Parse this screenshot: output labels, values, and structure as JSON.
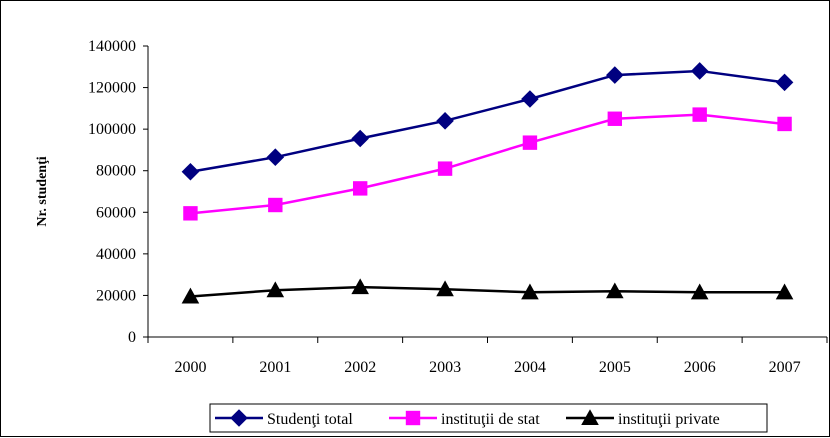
{
  "chart_data": {
    "type": "line",
    "title": "",
    "xlabel": "",
    "ylabel": "Nr. studenţi",
    "categories": [
      "2000",
      "2001",
      "2002",
      "2003",
      "2004",
      "2005",
      "2006",
      "2007"
    ],
    "ylim": [
      0,
      140000
    ],
    "yticks": [
      "0",
      "20000",
      "40000",
      "60000",
      "80000",
      "100000",
      "120000",
      "140000"
    ],
    "grid": false,
    "legend_position": "bottom",
    "series": [
      {
        "name": "Studenţi total",
        "color": "#000080",
        "marker": "diamond",
        "values": [
          79500,
          86500,
          95500,
          104000,
          114500,
          126000,
          128000,
          122500
        ]
      },
      {
        "name": "instituţii de stat",
        "color": "#FF00FF",
        "marker": "square",
        "values": [
          59500,
          63500,
          71500,
          81000,
          93500,
          105000,
          107000,
          102500
        ]
      },
      {
        "name": "instituţii private",
        "color": "#000000",
        "marker": "triangle",
        "values": [
          19500,
          22500,
          24000,
          23000,
          21500,
          22000,
          21500,
          21500
        ]
      }
    ]
  }
}
